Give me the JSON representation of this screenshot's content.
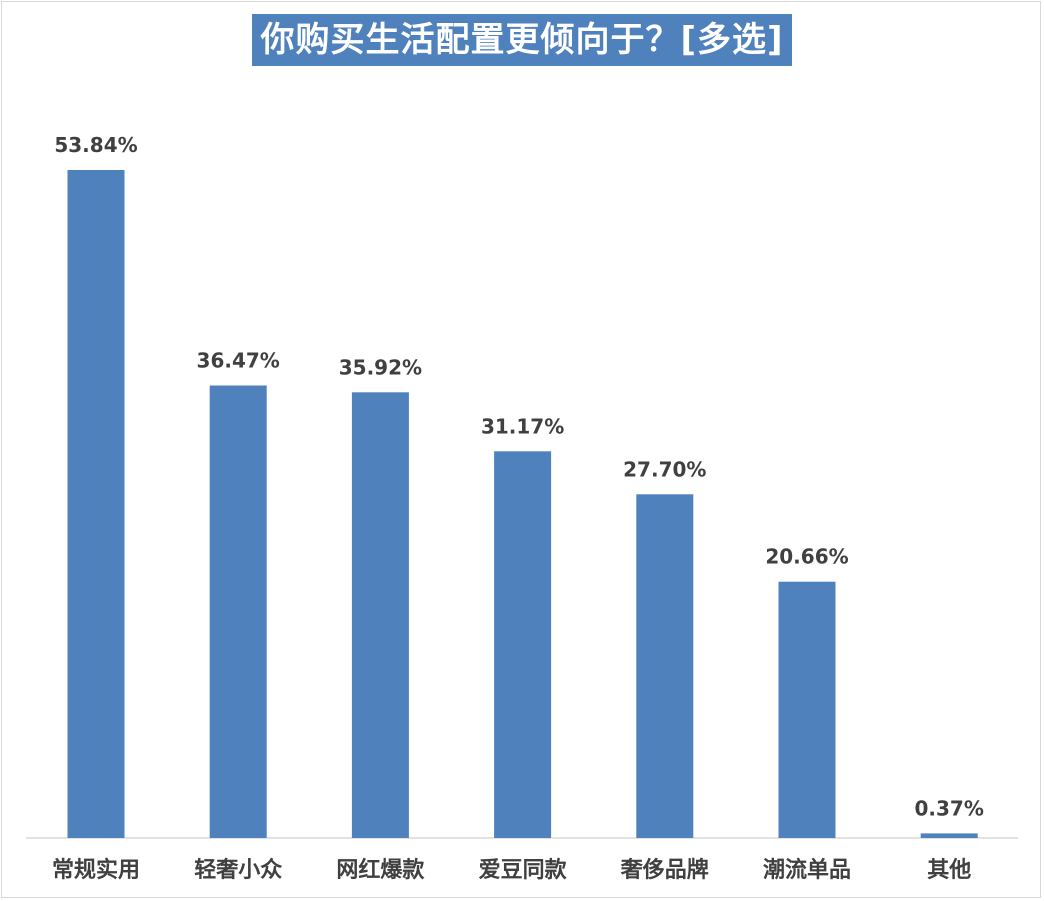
{
  "title": "你购买生活配置更倾向于？[多选]",
  "colors": {
    "bar": "#4f81bd",
    "title_bg": "#4f81bd",
    "title_text": "#ffffff",
    "label_text": "#404040",
    "axis": "#d9d9d9"
  },
  "chart_data": {
    "type": "bar",
    "title": "你购买生活配置更倾向于？[多选]",
    "xlabel": "",
    "ylabel": "",
    "categories": [
      "常规实用",
      "轻奢小众",
      "网红爆款",
      "爱豆同款",
      "奢侈品牌",
      "潮流单品",
      "其他"
    ],
    "values": [
      53.84,
      36.47,
      35.92,
      31.17,
      27.7,
      20.66,
      0.37
    ],
    "value_labels": [
      "53.84%",
      "36.47%",
      "35.92%",
      "31.17%",
      "27.70%",
      "20.66%",
      "0.37%"
    ],
    "unit": "%",
    "ylim": [
      0,
      53.84
    ],
    "grid": false,
    "legend": "none"
  }
}
